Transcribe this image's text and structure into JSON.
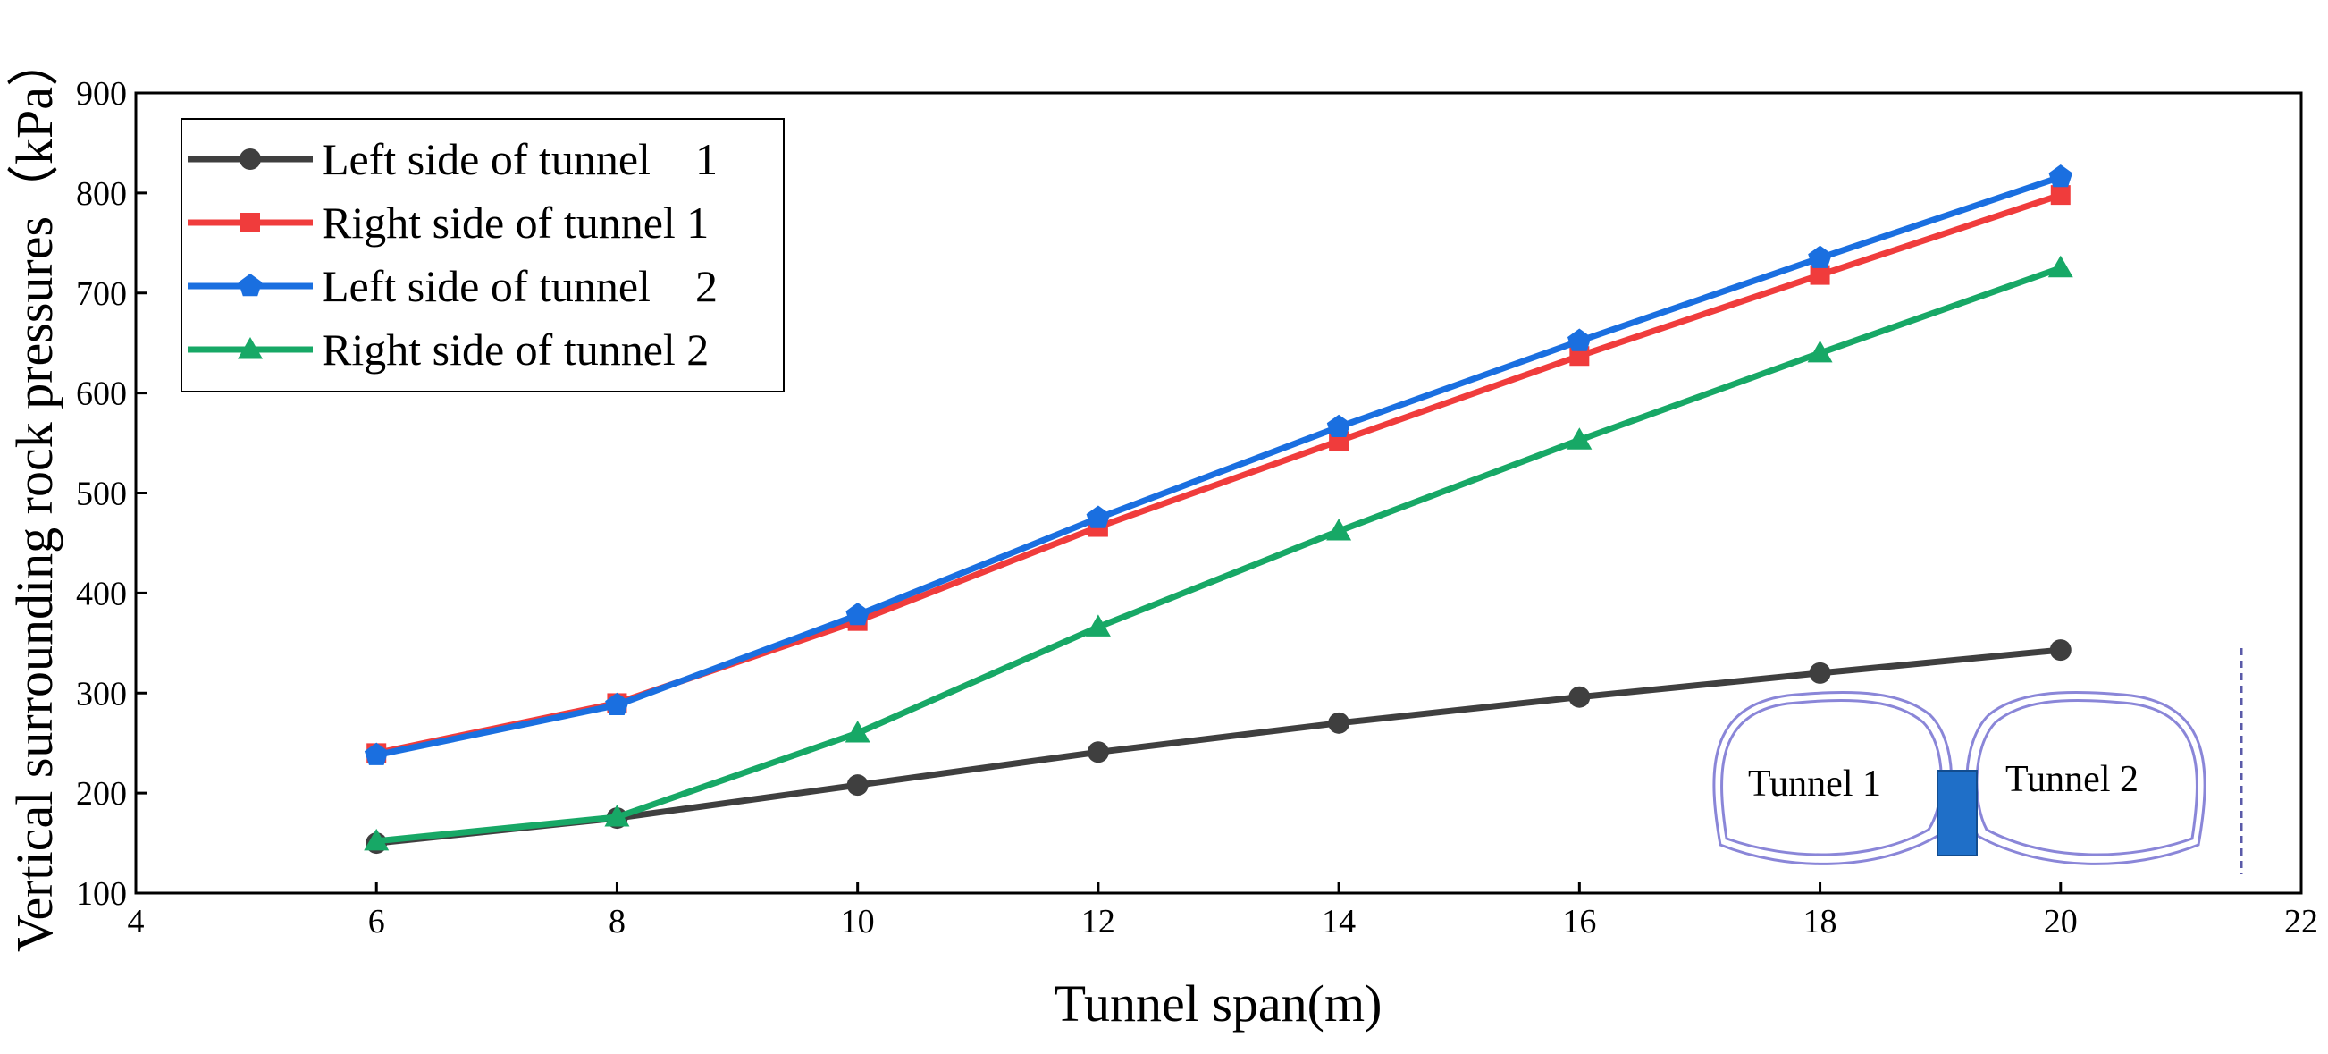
{
  "chart_data": {
    "type": "line",
    "title": "",
    "xlabel": "Tunnel span(m)",
    "ylabel": "Vertical surrounding rock pressures（kPa）",
    "xlim": [
      4,
      22
    ],
    "ylim": [
      100,
      900
    ],
    "x_ticks": [
      4,
      6,
      8,
      10,
      12,
      14,
      16,
      18,
      20,
      22
    ],
    "y_ticks": [
      100,
      200,
      300,
      400,
      500,
      600,
      700,
      800,
      900
    ],
    "x_tick_labels": [
      "4",
      "6",
      "8",
      "10",
      "12",
      "14",
      "16",
      "18",
      "20",
      "22"
    ],
    "y_tick_labels": [
      "100",
      "200",
      "300",
      "400",
      "500",
      "600",
      "700",
      "800",
      "900"
    ],
    "grid": false,
    "legend_position": "top-left",
    "x": [
      6,
      8,
      10,
      12,
      14,
      16,
      18,
      20
    ],
    "series": [
      {
        "name": "Left side of tunnel　1",
        "color": "#3f3f3f",
        "marker": "circle",
        "values": [
          150,
          175,
          208,
          241,
          270,
          296,
          320,
          343
        ]
      },
      {
        "name": "Right side of tunnel 1",
        "color": "#f03c3c",
        "marker": "square",
        "values": [
          240,
          290,
          372,
          466,
          552,
          637,
          718,
          798
        ]
      },
      {
        "name": "Left side of tunnel　2",
        "color": "#1a6fe0",
        "marker": "pentagon",
        "values": [
          238,
          288,
          378,
          475,
          566,
          652,
          735,
          816
        ]
      },
      {
        "name": "Right side of tunnel 2",
        "color": "#17a866",
        "marker": "triangle",
        "values": [
          152,
          176,
          260,
          366,
          462,
          553,
          640,
          725
        ]
      }
    ],
    "inset": {
      "labels": [
        "Tunnel 1",
        "Tunnel 2"
      ],
      "tunnel_outline_color": "#8a86d8",
      "pillar_color": "#1f6fc8"
    }
  }
}
